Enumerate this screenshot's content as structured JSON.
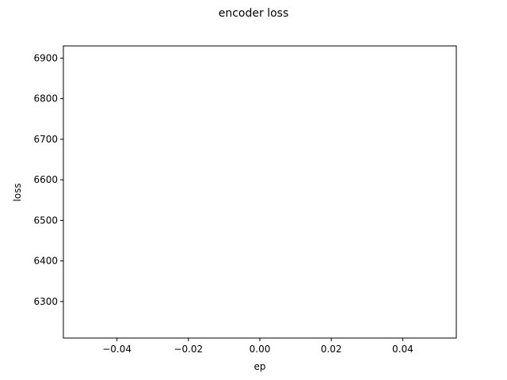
{
  "chart_data": {
    "type": "line",
    "title": "encoder loss",
    "xlabel": "ep",
    "ylabel": "loss",
    "xlim": [
      -0.055,
      0.055
    ],
    "ylim": [
      6210,
      6930
    ],
    "x_ticks": [
      -0.04,
      -0.02,
      0.0,
      0.02,
      0.04
    ],
    "x_tick_labels": [
      "−0.04",
      "−0.02",
      "0.00",
      "0.02",
      "0.04"
    ],
    "y_ticks": [
      6300,
      6400,
      6500,
      6600,
      6700,
      6800,
      6900
    ],
    "y_tick_labels": [
      "6300",
      "6400",
      "6500",
      "6600",
      "6700",
      "6800",
      "6900"
    ],
    "series": [
      {
        "x": [],
        "y": []
      }
    ],
    "grid": false,
    "legend": false
  }
}
